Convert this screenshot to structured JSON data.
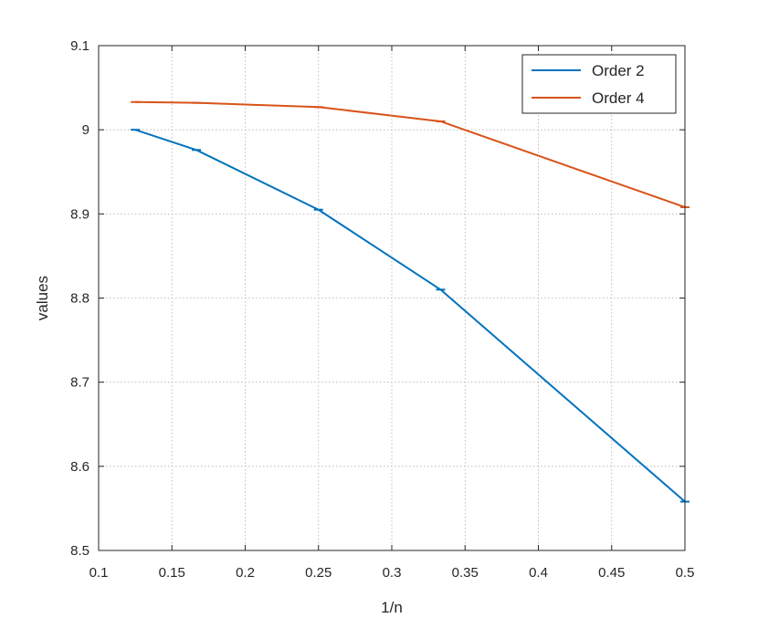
{
  "chart_data": {
    "type": "line",
    "title": "",
    "xlabel": "1/n",
    "ylabel": "values",
    "xlim": [
      0.1,
      0.5
    ],
    "ylim": [
      8.5,
      9.1
    ],
    "x_ticks": [
      0.1,
      0.15,
      0.2,
      0.25,
      0.3,
      0.35,
      0.4,
      0.45,
      0.5
    ],
    "x_tick_labels": [
      "0.1",
      "0.15",
      "0.2",
      "0.25",
      "0.3",
      "0.35",
      "0.4",
      "0.45",
      "0.5"
    ],
    "y_ticks": [
      8.5,
      8.6,
      8.7,
      8.8,
      8.9,
      9.0,
      9.1
    ],
    "y_tick_labels": [
      "8.5",
      "8.6",
      "8.7",
      "8.8",
      "8.9",
      "9",
      "9.1"
    ],
    "grid": true,
    "legend_position": "top-right",
    "series": [
      {
        "name": "Order 2",
        "color": "#0072BD",
        "x": [
          0.125,
          0.1667,
          0.25,
          0.3333,
          0.5
        ],
        "y": [
          9.0,
          8.976,
          8.905,
          8.81,
          8.558
        ]
      },
      {
        "name": "Order 4",
        "color": "#D95319",
        "x": [
          0.125,
          0.1667,
          0.25,
          0.3333,
          0.5
        ],
        "y": [
          9.033,
          9.032,
          9.027,
          9.01,
          8.908
        ]
      }
    ]
  }
}
